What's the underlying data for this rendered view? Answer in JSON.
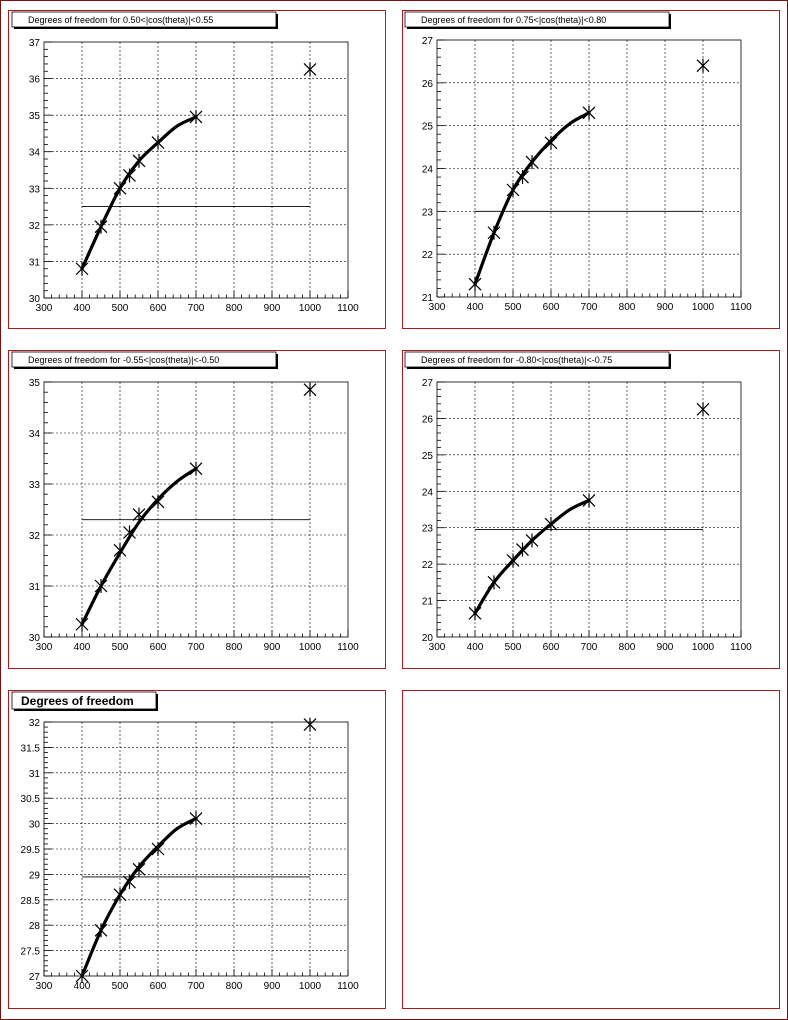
{
  "chart_data": [
    {
      "type": "scatter",
      "title": "Degrees of freedom for 0.50<|cos(theta)|<0.55",
      "xlim": [
        300,
        1100
      ],
      "ylim": [
        30,
        37
      ],
      "xticks": [
        300,
        400,
        500,
        600,
        700,
        800,
        900,
        1000,
        1100
      ],
      "yticks": [
        30,
        31,
        32,
        33,
        34,
        35,
        36,
        37
      ],
      "grid": true,
      "points": [
        [
          400,
          30.8
        ],
        [
          450,
          31.95
        ],
        [
          500,
          33.0
        ],
        [
          525,
          33.35
        ],
        [
          550,
          33.75
        ],
        [
          600,
          34.25
        ],
        [
          700,
          34.95
        ],
        [
          1000,
          36.25
        ]
      ],
      "reference_line": {
        "x": [
          400,
          1000
        ],
        "y": 32.5
      },
      "fit_curve": {
        "x_range": [
          400,
          700
        ],
        "points": [
          [
            400,
            30.8
          ],
          [
            450,
            31.95
          ],
          [
            500,
            33.0
          ],
          [
            550,
            33.75
          ],
          [
            600,
            34.25
          ],
          [
            650,
            34.7
          ],
          [
            700,
            34.95
          ]
        ]
      }
    },
    {
      "type": "scatter",
      "title": "Degrees of freedom for 0.75<|cos(theta)|<0.80",
      "xlim": [
        300,
        1100
      ],
      "ylim": [
        21,
        27
      ],
      "xticks": [
        300,
        400,
        500,
        600,
        700,
        800,
        900,
        1000,
        1100
      ],
      "yticks": [
        21,
        22,
        23,
        24,
        25,
        26,
        27
      ],
      "grid": true,
      "points": [
        [
          400,
          21.3
        ],
        [
          450,
          22.5
        ],
        [
          500,
          23.5
        ],
        [
          525,
          23.8
        ],
        [
          550,
          24.15
        ],
        [
          600,
          24.6
        ],
        [
          700,
          25.3
        ],
        [
          1000,
          26.4
        ]
      ],
      "reference_line": {
        "x": [
          400,
          1000
        ],
        "y": 23.0
      },
      "fit_curve": {
        "x_range": [
          400,
          700
        ],
        "points": [
          [
            400,
            21.3
          ],
          [
            450,
            22.5
          ],
          [
            500,
            23.5
          ],
          [
            550,
            24.15
          ],
          [
            600,
            24.65
          ],
          [
            650,
            25.05
          ],
          [
            700,
            25.3
          ]
        ]
      }
    },
    {
      "type": "scatter",
      "title": "Degrees of freedom for -0.55<|cos(theta)|<-0.50",
      "xlim": [
        300,
        1100
      ],
      "ylim": [
        30,
        35
      ],
      "xticks": [
        300,
        400,
        500,
        600,
        700,
        800,
        900,
        1000,
        1100
      ],
      "yticks": [
        30,
        31,
        32,
        33,
        34,
        35
      ],
      "grid": true,
      "points": [
        [
          400,
          30.25
        ],
        [
          450,
          31.0
        ],
        [
          500,
          31.7
        ],
        [
          525,
          32.05
        ],
        [
          550,
          32.4
        ],
        [
          600,
          32.65
        ],
        [
          700,
          33.3
        ],
        [
          1000,
          34.85
        ]
      ],
      "reference_line": {
        "x": [
          400,
          1000
        ],
        "y": 32.3
      },
      "fit_curve": {
        "x_range": [
          400,
          700
        ],
        "points": [
          [
            400,
            30.25
          ],
          [
            450,
            31.0
          ],
          [
            500,
            31.65
          ],
          [
            550,
            32.25
          ],
          [
            600,
            32.7
          ],
          [
            650,
            33.05
          ],
          [
            700,
            33.3
          ]
        ]
      }
    },
    {
      "type": "scatter",
      "title": "Degrees of freedom for -0.80<|cos(theta)|<-0.75",
      "xlim": [
        300,
        1100
      ],
      "ylim": [
        20,
        27
      ],
      "xticks": [
        300,
        400,
        500,
        600,
        700,
        800,
        900,
        1000,
        1100
      ],
      "yticks": [
        20,
        21,
        22,
        23,
        24,
        25,
        26,
        27
      ],
      "grid": true,
      "points": [
        [
          400,
          20.65
        ],
        [
          450,
          21.5
        ],
        [
          500,
          22.1
        ],
        [
          525,
          22.4
        ],
        [
          550,
          22.65
        ],
        [
          600,
          23.1
        ],
        [
          700,
          23.75
        ],
        [
          1000,
          26.25
        ]
      ],
      "reference_line": {
        "x": [
          400,
          1000
        ],
        "y": 22.95
      },
      "fit_curve": {
        "x_range": [
          400,
          700
        ],
        "points": [
          [
            400,
            20.65
          ],
          [
            450,
            21.5
          ],
          [
            500,
            22.1
          ],
          [
            550,
            22.65
          ],
          [
            600,
            23.1
          ],
          [
            650,
            23.5
          ],
          [
            700,
            23.75
          ]
        ]
      }
    },
    {
      "type": "scatter",
      "title": "Degrees of freedom",
      "xlim": [
        300,
        1100
      ],
      "ylim": [
        27,
        32
      ],
      "xticks": [
        300,
        400,
        500,
        600,
        700,
        800,
        900,
        1000,
        1100
      ],
      "yticks": [
        27,
        27.5,
        28,
        28.5,
        29,
        29.5,
        30,
        30.5,
        31,
        31.5,
        32
      ],
      "grid": true,
      "points": [
        [
          400,
          27.0
        ],
        [
          450,
          27.9
        ],
        [
          500,
          28.6
        ],
        [
          525,
          28.85
        ],
        [
          550,
          29.1
        ],
        [
          600,
          29.5
        ],
        [
          700,
          30.1
        ],
        [
          1000,
          31.95
        ]
      ],
      "reference_line": {
        "x": [
          400,
          1000
        ],
        "y": 28.95
      },
      "fit_curve": {
        "x_range": [
          400,
          700
        ],
        "points": [
          [
            400,
            27.0
          ],
          [
            450,
            27.9
          ],
          [
            500,
            28.6
          ],
          [
            550,
            29.15
          ],
          [
            600,
            29.55
          ],
          [
            650,
            29.9
          ],
          [
            700,
            30.1
          ]
        ]
      }
    }
  ]
}
